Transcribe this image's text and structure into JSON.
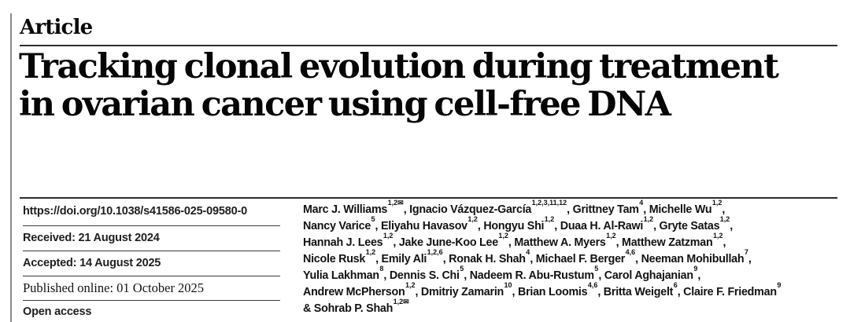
{
  "colors": {
    "background": "#ffffff",
    "text": "#121212",
    "title_text": "#050505",
    "rule": "#2d2d2d",
    "margin_bar": "#8a8a8a"
  },
  "kicker": {
    "label": "Article"
  },
  "title": {
    "full": "Tracking clonal evolution during treatment in ovarian cancer using cell-free DNA",
    "line1": "Tracking clonal evolution during treatment",
    "line2": "in ovarian cancer using cell-free DNA"
  },
  "meta": {
    "doi": "https://doi.org/10.1038/s41586-025-09580-0",
    "received": "Received: 21 August 2024",
    "accepted": "Accepted: 14 August 2025",
    "published_online": "Published online: 01 October 2025",
    "open_access": "Open access"
  },
  "authors": {
    "corresponding_icon": "✉",
    "lines": [
      [
        {
          "t": "Marc J. Williams",
          "s": "1,2✉"
        },
        {
          "t": ", Ignacio Vázquez-García",
          "s": "1,2,3,11,12"
        },
        {
          "t": ", Grittney Tam",
          "s": "4"
        },
        {
          "t": ", Michelle Wu",
          "s": "1,2"
        },
        {
          "t": ","
        }
      ],
      [
        {
          "t": "Nancy Varice",
          "s": "5"
        },
        {
          "t": ", Eliyahu Havasov",
          "s": "1,2"
        },
        {
          "t": ", Hongyu Shi",
          "s": "1,2"
        },
        {
          "t": ", Duaa H. Al-Rawi",
          "s": "1,2"
        },
        {
          "t": ", Gryte Satas",
          "s": "1,2"
        },
        {
          "t": ","
        }
      ],
      [
        {
          "t": "Hannah J. Lees",
          "s": "1,2"
        },
        {
          "t": ", Jake June-Koo Lee",
          "s": "1,2"
        },
        {
          "t": ", Matthew A. Myers",
          "s": "1,2"
        },
        {
          "t": ", Matthew Zatzman",
          "s": "1,2"
        },
        {
          "t": ","
        }
      ],
      [
        {
          "t": "Nicole Rusk",
          "s": "1,2"
        },
        {
          "t": ", Emily Ali",
          "s": "1,2,6"
        },
        {
          "t": ", Ronak H. Shah",
          "s": "4"
        },
        {
          "t": ", Michael F. Berger",
          "s": "4,6"
        },
        {
          "t": ", Neeman Mohibullah",
          "s": "7"
        },
        {
          "t": ","
        }
      ],
      [
        {
          "t": "Yulia Lakhman",
          "s": "8"
        },
        {
          "t": ", Dennis S. Chi",
          "s": "5"
        },
        {
          "t": ", Nadeem R. Abu-Rustum",
          "s": "5"
        },
        {
          "t": ", Carol Aghajanian",
          "s": "9"
        },
        {
          "t": ","
        }
      ],
      [
        {
          "t": "Andrew McPherson",
          "s": "1,2"
        },
        {
          "t": ", Dmitriy Zamarin",
          "s": "10"
        },
        {
          "t": ", Brian Loomis",
          "s": "4,6"
        },
        {
          "t": ", Britta Weigelt",
          "s": "6"
        },
        {
          "t": ", Claire F. Friedman",
          "s": "9"
        }
      ],
      [
        {
          "t": "& Sohrab P. Shah",
          "s": "1,2✉"
        }
      ]
    ]
  }
}
